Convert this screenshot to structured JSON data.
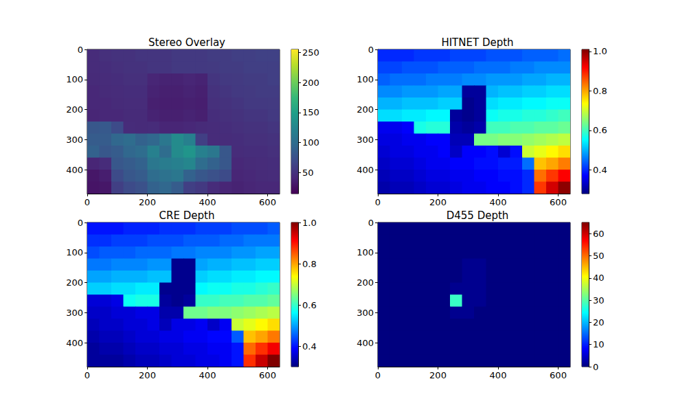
{
  "chart_data": [
    {
      "type": "heatmap",
      "title": "Stereo Overlay",
      "color": "viridis",
      "xlim": [
        0,
        640
      ],
      "ylim": [
        480,
        0
      ],
      "xticks": [
        0,
        200,
        400,
        600
      ],
      "yticks": [
        0,
        100,
        200,
        300,
        400
      ],
      "cells": [
        [
          45,
          48,
          50,
          50,
          52,
          52,
          52,
          55,
          55,
          55,
          58,
          58,
          60,
          60,
          62,
          62
        ],
        [
          45,
          46,
          48,
          50,
          50,
          52,
          52,
          55,
          55,
          55,
          56,
          58,
          58,
          60,
          60,
          60
        ],
        [
          44,
          45,
          46,
          48,
          48,
          40,
          38,
          38,
          40,
          38,
          52,
          55,
          56,
          58,
          58,
          60
        ],
        [
          42,
          44,
          45,
          46,
          46,
          38,
          36,
          36,
          38,
          36,
          50,
          52,
          55,
          56,
          58,
          58
        ],
        [
          42,
          42,
          44,
          45,
          45,
          36,
          35,
          35,
          36,
          35,
          48,
          50,
          52,
          55,
          55,
          56
        ],
        [
          40,
          42,
          42,
          44,
          44,
          38,
          36,
          36,
          38,
          36,
          46,
          48,
          50,
          52,
          52,
          55
        ],
        [
          80,
          82,
          70,
          45,
          44,
          45,
          40,
          40,
          42,
          44,
          45,
          46,
          48,
          50,
          50,
          52
        ],
        [
          85,
          85,
          95,
          100,
          90,
          95,
          110,
          130,
          120,
          60,
          45,
          45,
          46,
          48,
          48,
          50
        ],
        [
          90,
          80,
          85,
          95,
          100,
          120,
          100,
          130,
          140,
          120,
          110,
          80,
          45,
          46,
          46,
          48
        ],
        [
          40,
          45,
          80,
          85,
          90,
          110,
          115,
          120,
          125,
          100,
          90,
          80,
          42,
          44,
          45,
          46
        ],
        [
          30,
          35,
          70,
          80,
          85,
          100,
          105,
          110,
          90,
          80,
          75,
          70,
          40,
          42,
          44,
          45
        ],
        [
          28,
          30,
          60,
          70,
          75,
          90,
          95,
          85,
          60,
          55,
          45,
          40,
          38,
          40,
          42,
          42
        ]
      ],
      "colorbar_range": [
        15,
        255
      ],
      "colorbar_ticks": [
        50,
        100,
        150,
        200,
        250
      ]
    },
    {
      "type": "heatmap",
      "title": "HITNET Depth",
      "color": "jet",
      "xlim": [
        0,
        640
      ],
      "ylim": [
        480,
        0
      ],
      "xticks": [
        0,
        200,
        400,
        600
      ],
      "yticks": [
        0,
        100,
        200,
        300,
        400
      ],
      "cells": [
        [
          0.4,
          0.4,
          0.4,
          0.41,
          0.41,
          0.41,
          0.42,
          0.42,
          0.42,
          0.43,
          0.43,
          0.43,
          0.44,
          0.44,
          0.44,
          0.45
        ],
        [
          0.42,
          0.42,
          0.43,
          0.43,
          0.43,
          0.44,
          0.44,
          0.44,
          0.45,
          0.45,
          0.45,
          0.46,
          0.46,
          0.47,
          0.47,
          0.47
        ],
        [
          0.44,
          0.45,
          0.45,
          0.45,
          0.46,
          0.46,
          0.46,
          0.47,
          0.47,
          0.48,
          0.48,
          0.48,
          0.49,
          0.49,
          0.5,
          0.5
        ],
        [
          0.47,
          0.47,
          0.48,
          0.48,
          0.48,
          0.49,
          0.49,
          0.3,
          0.3,
          0.5,
          0.51,
          0.51,
          0.52,
          0.52,
          0.53,
          0.53
        ],
        [
          0.5,
          0.5,
          0.51,
          0.51,
          0.51,
          0.52,
          0.52,
          0.29,
          0.3,
          0.53,
          0.54,
          0.54,
          0.55,
          0.55,
          0.56,
          0.56
        ],
        [
          0.53,
          0.53,
          0.54,
          0.54,
          0.55,
          0.55,
          0.3,
          0.29,
          0.3,
          0.56,
          0.57,
          0.57,
          0.58,
          0.58,
          0.59,
          0.6
        ],
        [
          0.36,
          0.36,
          0.37,
          0.57,
          0.58,
          0.58,
          0.31,
          0.3,
          0.31,
          0.6,
          0.6,
          0.61,
          0.61,
          0.62,
          0.62,
          0.63
        ],
        [
          0.35,
          0.35,
          0.36,
          0.36,
          0.37,
          0.37,
          0.32,
          0.32,
          0.64,
          0.64,
          0.65,
          0.65,
          0.66,
          0.67,
          0.68,
          0.69
        ],
        [
          0.34,
          0.35,
          0.35,
          0.36,
          0.36,
          0.37,
          0.33,
          0.37,
          0.37,
          0.38,
          0.34,
          0.38,
          0.7,
          0.72,
          0.74,
          0.76
        ],
        [
          0.33,
          0.34,
          0.34,
          0.35,
          0.36,
          0.36,
          0.37,
          0.37,
          0.38,
          0.38,
          0.39,
          0.39,
          0.45,
          0.78,
          0.8,
          0.83
        ],
        [
          0.32,
          0.33,
          0.33,
          0.34,
          0.35,
          0.35,
          0.36,
          0.36,
          0.37,
          0.37,
          0.38,
          0.38,
          0.4,
          0.84,
          0.88,
          0.92
        ],
        [
          0.31,
          0.32,
          0.32,
          0.33,
          0.34,
          0.34,
          0.35,
          0.36,
          0.36,
          0.37,
          0.37,
          0.38,
          0.4,
          0.88,
          0.95,
          1.0
        ]
      ],
      "colorbar_range": [
        0.28,
        1.01
      ],
      "colorbar_ticks": [
        0.4,
        0.6,
        0.8,
        {
          "value": 1,
          "label": "1.0"
        }
      ]
    },
    {
      "type": "heatmap",
      "title": "CRE Depth",
      "color": "jet",
      "xlim": [
        0,
        640
      ],
      "ylim": [
        480,
        0
      ],
      "xticks": [
        0,
        200,
        400,
        600
      ],
      "yticks": [
        0,
        100,
        200,
        300,
        400
      ],
      "cells": [
        [
          0.4,
          0.4,
          0.4,
          0.41,
          0.41,
          0.41,
          0.42,
          0.42,
          0.42,
          0.43,
          0.43,
          0.43,
          0.44,
          0.44,
          0.44,
          0.45
        ],
        [
          0.42,
          0.42,
          0.43,
          0.43,
          0.43,
          0.44,
          0.44,
          0.44,
          0.45,
          0.45,
          0.45,
          0.46,
          0.46,
          0.47,
          0.47,
          0.47
        ],
        [
          0.44,
          0.45,
          0.45,
          0.45,
          0.46,
          0.46,
          0.46,
          0.47,
          0.47,
          0.48,
          0.48,
          0.48,
          0.49,
          0.49,
          0.5,
          0.5
        ],
        [
          0.47,
          0.47,
          0.48,
          0.48,
          0.48,
          0.49,
          0.49,
          0.31,
          0.31,
          0.5,
          0.51,
          0.51,
          0.52,
          0.52,
          0.53,
          0.53
        ],
        [
          0.5,
          0.5,
          0.51,
          0.51,
          0.51,
          0.52,
          0.52,
          0.31,
          0.31,
          0.53,
          0.54,
          0.54,
          0.55,
          0.55,
          0.56,
          0.56
        ],
        [
          0.53,
          0.53,
          0.54,
          0.54,
          0.55,
          0.55,
          0.31,
          0.31,
          0.31,
          0.56,
          0.57,
          0.57,
          0.58,
          0.58,
          0.59,
          0.6
        ],
        [
          0.36,
          0.36,
          0.37,
          0.57,
          0.58,
          0.58,
          0.32,
          0.31,
          0.32,
          0.6,
          0.6,
          0.61,
          0.61,
          0.62,
          0.62,
          0.63
        ],
        [
          0.35,
          0.35,
          0.36,
          0.36,
          0.37,
          0.37,
          0.33,
          0.33,
          0.64,
          0.64,
          0.65,
          0.65,
          0.66,
          0.67,
          0.68,
          0.69
        ],
        [
          0.34,
          0.35,
          0.35,
          0.36,
          0.36,
          0.37,
          0.34,
          0.37,
          0.37,
          0.38,
          0.35,
          0.38,
          0.7,
          0.72,
          0.74,
          0.76
        ],
        [
          0.33,
          0.34,
          0.34,
          0.35,
          0.36,
          0.36,
          0.37,
          0.37,
          0.38,
          0.38,
          0.39,
          0.39,
          0.45,
          0.78,
          0.8,
          0.83
        ],
        [
          0.32,
          0.33,
          0.33,
          0.34,
          0.35,
          0.35,
          0.36,
          0.36,
          0.37,
          0.37,
          0.38,
          0.38,
          0.4,
          0.84,
          0.88,
          0.92
        ],
        [
          0.32,
          0.32,
          0.32,
          0.33,
          0.34,
          0.34,
          0.35,
          0.36,
          0.36,
          0.37,
          0.37,
          0.38,
          0.4,
          0.88,
          0.95,
          1.0
        ]
      ],
      "colorbar_range": [
        0.3,
        1.0
      ],
      "colorbar_ticks": [
        0.4,
        0.6,
        0.8,
        {
          "value": 1,
          "label": "1.0"
        }
      ]
    },
    {
      "type": "heatmap",
      "title": "D455 Depth",
      "color": "jet",
      "xlim": [
        0,
        640
      ],
      "ylim": [
        480,
        0
      ],
      "xticks": [
        0,
        200,
        400,
        600
      ],
      "yticks": [
        0,
        100,
        200,
        300,
        400
      ],
      "cells": [
        [
          0,
          0,
          0,
          0,
          0,
          0,
          0,
          0,
          0,
          0,
          0,
          0,
          0,
          0,
          0,
          0
        ],
        [
          0,
          0,
          0,
          0,
          0,
          0,
          0,
          0,
          0,
          0,
          0,
          0,
          0,
          0,
          0,
          0
        ],
        [
          0,
          0,
          0,
          0,
          0,
          0,
          0,
          0,
          0,
          0,
          0,
          0,
          0,
          0,
          0,
          0
        ],
        [
          0,
          0,
          0,
          0,
          0,
          0,
          0,
          1,
          1,
          0,
          0,
          0,
          0,
          0,
          0,
          0
        ],
        [
          0,
          0,
          0,
          0,
          0,
          0,
          0,
          1,
          1,
          0,
          0,
          0,
          0,
          0,
          0,
          0
        ],
        [
          0,
          0,
          0,
          0,
          0,
          0,
          1,
          1,
          1,
          0,
          0,
          0,
          0,
          0,
          0,
          0
        ],
        [
          0,
          0,
          0,
          0,
          0,
          0,
          28,
          1,
          1,
          0,
          0,
          0,
          0,
          0,
          0,
          0
        ],
        [
          0,
          0,
          0,
          0,
          0,
          0,
          1,
          1,
          0,
          0,
          0,
          0,
          0,
          0,
          0,
          0
        ],
        [
          0,
          0,
          0,
          0,
          0,
          0,
          0,
          0,
          0,
          0,
          0,
          0,
          0,
          0,
          0,
          0
        ],
        [
          0,
          0,
          0,
          0,
          0,
          0,
          0,
          0,
          0,
          0,
          0,
          0,
          0,
          0,
          0,
          0
        ],
        [
          0,
          0,
          0,
          0,
          0,
          0,
          0,
          0,
          0,
          0,
          0,
          0,
          0,
          0,
          0,
          0
        ],
        [
          0,
          0,
          0,
          0,
          0,
          0,
          0,
          0,
          0,
          0,
          0,
          0,
          0,
          0,
          0,
          0
        ]
      ],
      "colorbar_range": [
        0,
        65
      ],
      "colorbar_ticks": [
        0,
        10,
        20,
        30,
        40,
        50,
        60
      ]
    }
  ]
}
